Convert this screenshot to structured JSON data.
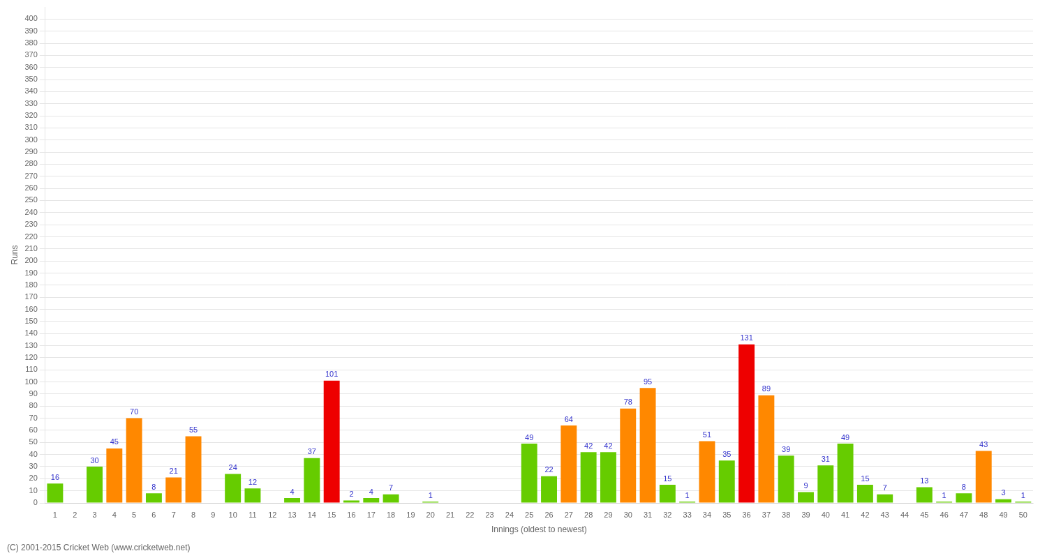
{
  "chart_data": {
    "type": "bar",
    "xlabel": "Innings (oldest to newest)",
    "ylabel": "Runs",
    "categories": [
      "1",
      "2",
      "3",
      "4",
      "5",
      "6",
      "7",
      "8",
      "9",
      "10",
      "11",
      "12",
      "13",
      "14",
      "15",
      "16",
      "17",
      "18",
      "19",
      "20",
      "21",
      "22",
      "23",
      "24",
      "25",
      "26",
      "27",
      "28",
      "29",
      "30",
      "31",
      "32",
      "33",
      "34",
      "35",
      "36",
      "37",
      "38",
      "39",
      "40",
      "41",
      "42",
      "43",
      "44",
      "45",
      "46",
      "47",
      "48",
      "49",
      "50"
    ],
    "values": [
      16,
      0,
      30,
      45,
      70,
      8,
      21,
      55,
      0,
      24,
      12,
      0,
      4,
      37,
      101,
      2,
      4,
      7,
      0,
      1,
      0,
      0,
      0,
      0,
      49,
      22,
      64,
      42,
      42,
      78,
      95,
      15,
      1,
      51,
      35,
      131,
      89,
      39,
      9,
      31,
      49,
      15,
      7,
      0,
      13,
      1,
      8,
      43,
      3,
      1
    ],
    "value_labels": [
      "16",
      null,
      "30",
      "45",
      "70",
      "8",
      "21",
      "55",
      null,
      "24",
      "12",
      null,
      "4",
      "37",
      "101",
      "2",
      "4",
      "7",
      null,
      "1",
      null,
      null,
      null,
      null,
      "49",
      "22",
      "64",
      "42",
      "42",
      "78",
      "95",
      "15",
      "1",
      "51",
      "35",
      "131",
      "89",
      "39",
      "9",
      "31",
      "49",
      "15",
      "7",
      null,
      "13",
      "1",
      "8",
      "43",
      "3",
      "1"
    ],
    "colors": [
      "#66cc00",
      "#66cc00",
      "#66cc00",
      "#ff8800",
      "#ff8800",
      "#66cc00",
      "#ff8800",
      "#ff8800",
      "#66cc00",
      "#66cc00",
      "#66cc00",
      "#66cc00",
      "#66cc00",
      "#66cc00",
      "#ee0000",
      "#66cc00",
      "#66cc00",
      "#66cc00",
      "#66cc00",
      "#66cc00",
      "#66cc00",
      "#66cc00",
      "#66cc00",
      "#66cc00",
      "#66cc00",
      "#66cc00",
      "#ff8800",
      "#66cc00",
      "#66cc00",
      "#ff8800",
      "#ff8800",
      "#66cc00",
      "#66cc00",
      "#ff8800",
      "#66cc00",
      "#ee0000",
      "#ff8800",
      "#66cc00",
      "#66cc00",
      "#66cc00",
      "#66cc00",
      "#66cc00",
      "#66cc00",
      "#66cc00",
      "#66cc00",
      "#66cc00",
      "#66cc00",
      "#ff8800",
      "#66cc00",
      "#66cc00"
    ],
    "data_labels": true,
    "ylim": [
      0,
      410
    ],
    "yticks": [
      0,
      10,
      20,
      30,
      40,
      50,
      60,
      70,
      80,
      90,
      100,
      110,
      120,
      130,
      140,
      150,
      160,
      170,
      180,
      190,
      200,
      210,
      220,
      230,
      240,
      250,
      260,
      270,
      280,
      290,
      300,
      310,
      320,
      330,
      340,
      350,
      360,
      370,
      380,
      390,
      400
    ],
    "grid": true,
    "annotations": [
      "(C) 2001-2015 Cricket Web (www.cricketweb.net)"
    ]
  }
}
